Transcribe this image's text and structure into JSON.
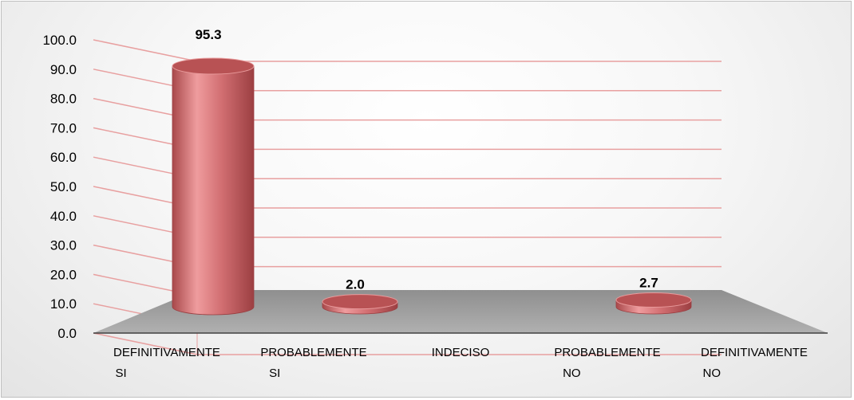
{
  "chart_data": {
    "type": "bar",
    "style": "3d-cylinder",
    "categories": [
      [
        "DEFINITIVAMENTE",
        "SI"
      ],
      [
        "PROBABLEMENTE",
        "SI"
      ],
      [
        "INDECISO"
      ],
      [
        "PROBABLEMENTE",
        "NO"
      ],
      [
        "DEFINITIVAMENTE",
        "NO"
      ]
    ],
    "values": [
      95.3,
      2.0,
      null,
      2.7,
      null
    ],
    "data_labels": [
      "95.3",
      "2.0",
      "",
      "2.7",
      ""
    ],
    "yticks": [
      "0.0",
      "10.0",
      "20.0",
      "30.0",
      "40.0",
      "50.0",
      "60.0",
      "70.0",
      "80.0",
      "90.0",
      "100.0"
    ],
    "ylim": [
      0,
      100
    ],
    "grid": true,
    "colors": {
      "bar": "#d9777a",
      "bar_dark": "#a84a4c",
      "grid": "#e8a0a0",
      "floor": "#a6a6a6",
      "axis": "#404040"
    }
  }
}
